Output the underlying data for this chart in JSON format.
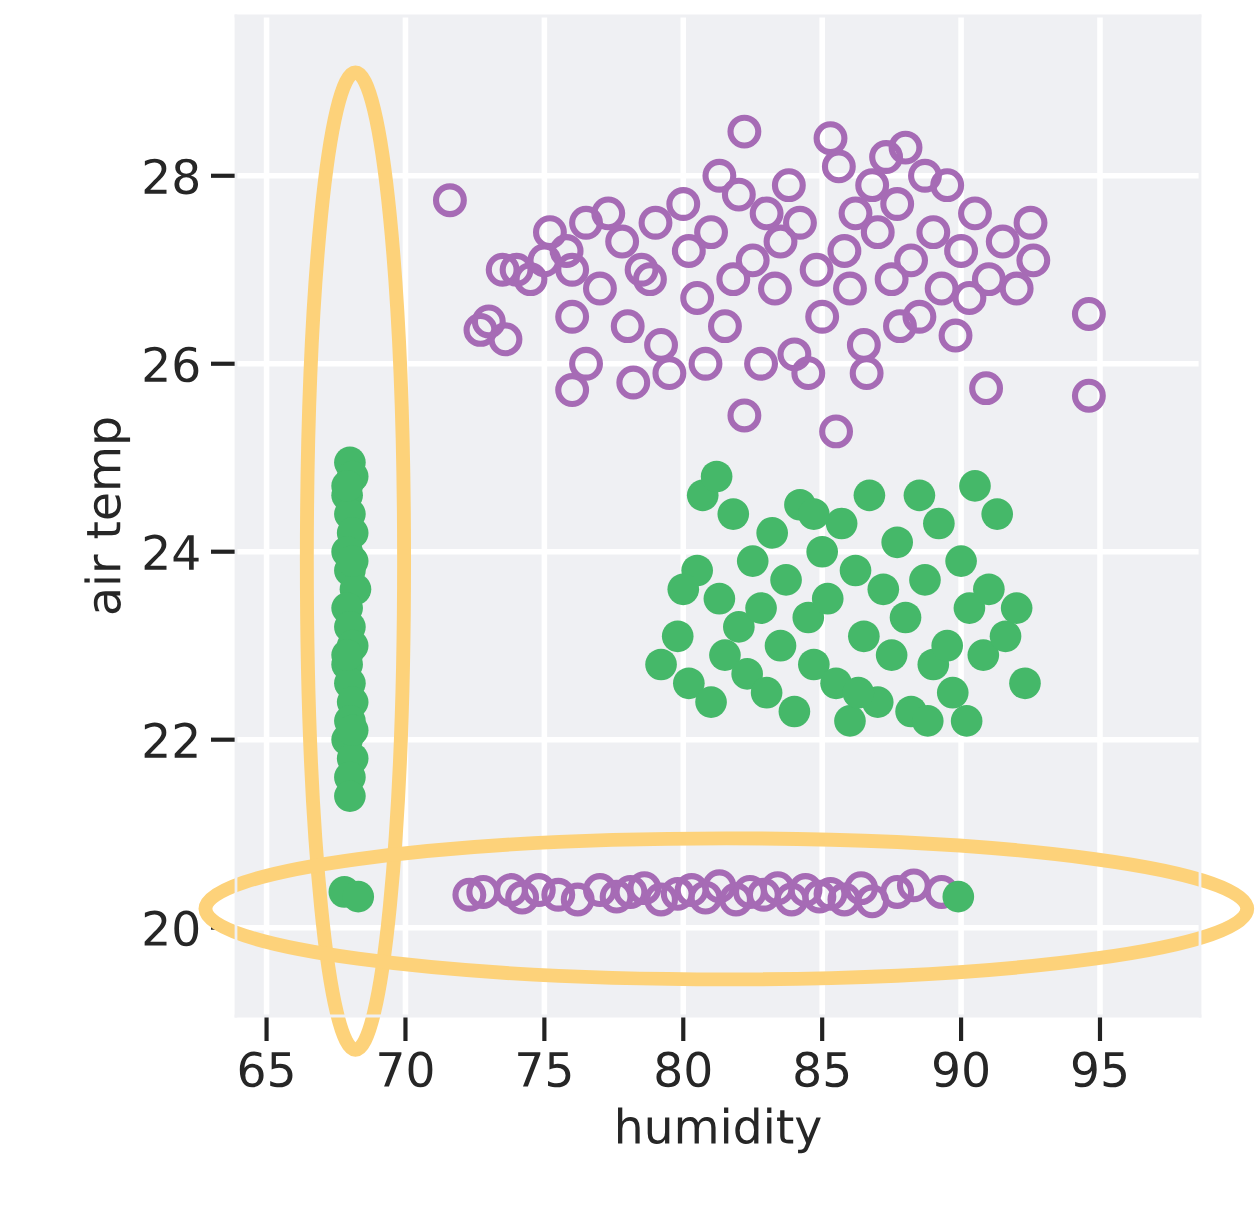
{
  "chart_data": {
    "type": "scatter",
    "xlabel": "humidity",
    "ylabel": "air temp",
    "xlim": [
      63.9,
      98.6
    ],
    "ylim": [
      19.06,
      29.7
    ],
    "xticks": [
      65,
      70,
      75,
      80,
      85,
      90,
      95
    ],
    "yticks": [
      20,
      22,
      24,
      26,
      28
    ],
    "grid": true,
    "marker": "circle",
    "legend": false,
    "series": [
      {
        "color": "#a66bb5",
        "x": [
          71.6,
          72.7,
          73.6,
          73.0,
          73.5,
          74.0,
          74.5,
          75.0,
          75.2,
          75.8,
          76.0,
          76.5,
          76.0,
          76.5,
          76.0,
          77.0,
          77.3,
          77.8,
          78.0,
          78.2,
          78.5,
          79.0,
          79.2,
          79.5,
          80.0,
          80.2,
          80.5,
          80.8,
          81.0,
          81.3,
          81.5,
          82.0,
          82.2,
          82.2,
          82.5,
          82.8,
          83.0,
          83.3,
          83.5,
          84.0,
          84.2,
          84.5,
          84.8,
          85.0,
          85.3,
          85.5,
          85.6,
          85.8,
          86.0,
          86.2,
          86.5,
          86.6,
          86.8,
          87.0,
          87.3,
          87.5,
          87.7,
          88.0,
          88.2,
          88.5,
          88.7,
          89.0,
          89.3,
          89.5,
          89.8,
          90.0,
          90.3,
          90.5,
          90.9,
          91.0,
          91.5,
          92.0,
          92.5,
          92.6,
          94.6,
          94.6,
          78.8,
          83.8,
          81.8,
          87.8,
          72.3,
          72.8,
          73.8,
          74.2,
          74.8,
          75.5,
          76.2,
          77.0,
          77.6,
          78.1,
          78.6,
          79.2,
          79.8,
          80.3,
          80.8,
          81.3,
          81.9,
          82.4,
          82.9,
          83.4,
          83.9,
          84.4,
          84.9,
          85.3,
          85.8,
          86.4,
          86.8,
          87.7,
          88.3,
          89.3
        ],
        "values": [
          27.74,
          26.36,
          26.26,
          26.45,
          27.0,
          27.0,
          26.9,
          27.1,
          27.4,
          27.2,
          27.0,
          27.5,
          26.5,
          26.0,
          25.72,
          26.8,
          27.6,
          27.3,
          26.4,
          25.8,
          27.0,
          27.5,
          26.2,
          25.9,
          27.7,
          27.2,
          26.7,
          26.0,
          27.4,
          28.0,
          26.4,
          27.8,
          28.47,
          25.45,
          27.1,
          26.0,
          27.6,
          26.8,
          27.3,
          26.1,
          27.5,
          25.9,
          27.0,
          26.5,
          28.4,
          25.28,
          28.1,
          27.2,
          26.8,
          27.6,
          26.2,
          25.9,
          27.9,
          27.4,
          28.2,
          26.9,
          27.7,
          28.3,
          27.1,
          26.5,
          28.0,
          27.4,
          26.8,
          27.9,
          26.3,
          27.2,
          26.7,
          27.6,
          25.74,
          26.9,
          27.3,
          26.8,
          27.5,
          27.1,
          26.53,
          25.66,
          26.9,
          27.9,
          26.9,
          26.4,
          20.35,
          20.38,
          20.4,
          20.32,
          20.4,
          20.35,
          20.3,
          20.4,
          20.33,
          20.38,
          20.42,
          20.3,
          20.36,
          20.4,
          20.32,
          20.44,
          20.3,
          20.38,
          20.35,
          20.42,
          20.3,
          20.4,
          20.33,
          20.36,
          20.3,
          20.42,
          20.28,
          20.38,
          20.45,
          20.38
        ]
      },
      {
        "color": "#45b869",
        "x": [
          68.0,
          68.1,
          67.9,
          68.0,
          68.1,
          67.9,
          68.0,
          68.2,
          67.9,
          68.0,
          68.1,
          67.9,
          68.0,
          68.1,
          68.0,
          67.9,
          68.1,
          68.0,
          68.0,
          67.9,
          68.1,
          67.9,
          68.1,
          67.8,
          68.3,
          89.9,
          79.2,
          79.8,
          80.2,
          80.5,
          80.7,
          81.0,
          81.3,
          81.5,
          81.8,
          82.0,
          82.3,
          82.5,
          82.8,
          83.0,
          83.2,
          83.5,
          83.7,
          84.0,
          84.2,
          84.5,
          84.7,
          85.0,
          85.2,
          85.5,
          85.7,
          86.0,
          86.2,
          86.5,
          86.7,
          87.0,
          87.2,
          87.5,
          87.7,
          88.0,
          88.2,
          88.5,
          88.7,
          89.0,
          89.2,
          89.5,
          89.7,
          90.0,
          90.3,
          90.5,
          90.8,
          91.0,
          91.3,
          91.6,
          92.0,
          92.3,
          80.0,
          81.2,
          84.7,
          86.3,
          88.8,
          90.2
        ],
        "values": [
          24.95,
          24.8,
          24.6,
          24.4,
          24.2,
          24.0,
          23.8,
          23.6,
          23.4,
          23.2,
          23.0,
          22.8,
          22.6,
          22.4,
          22.2,
          22.0,
          21.8,
          21.6,
          21.4,
          24.7,
          23.9,
          22.9,
          22.1,
          20.38,
          20.33,
          20.33,
          22.8,
          23.1,
          22.6,
          23.8,
          24.6,
          22.4,
          23.5,
          22.9,
          24.4,
          23.2,
          22.7,
          23.9,
          23.4,
          22.5,
          24.2,
          23.0,
          23.7,
          22.3,
          24.5,
          23.3,
          22.8,
          24.0,
          23.5,
          22.6,
          24.3,
          22.2,
          23.8,
          23.1,
          24.6,
          22.4,
          23.6,
          22.9,
          24.1,
          23.3,
          22.3,
          24.6,
          23.7,
          22.8,
          24.3,
          23.0,
          22.5,
          23.9,
          23.4,
          24.7,
          22.9,
          23.6,
          24.4,
          23.1,
          23.4,
          22.6,
          23.6,
          24.8,
          24.4,
          22.5,
          22.2,
          22.2
        ]
      }
    ]
  }
}
